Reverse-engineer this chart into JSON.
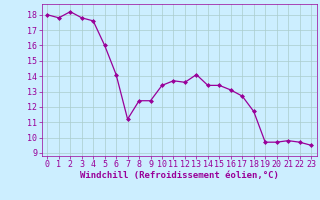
{
  "x": [
    0,
    1,
    2,
    3,
    4,
    5,
    6,
    7,
    8,
    9,
    10,
    11,
    12,
    13,
    14,
    15,
    16,
    17,
    18,
    19,
    20,
    21,
    22,
    23
  ],
  "y": [
    18.0,
    17.8,
    18.2,
    17.8,
    17.6,
    16.0,
    14.1,
    11.2,
    12.4,
    12.4,
    13.4,
    13.7,
    13.6,
    14.1,
    13.4,
    13.4,
    13.1,
    12.7,
    11.7,
    9.7,
    9.7,
    9.8,
    9.7,
    9.5
  ],
  "line_color": "#990099",
  "marker": "D",
  "marker_size": 2.0,
  "line_width": 0.9,
  "bg_color": "#cceeff",
  "grid_color": "#aacccc",
  "xlabel": "Windchill (Refroidissement éolien,°C)",
  "xlabel_color": "#990099",
  "xlabel_fontsize": 6.5,
  "tick_color": "#990099",
  "tick_fontsize": 6,
  "ylim": [
    8.8,
    18.7
  ],
  "xlim": [
    -0.5,
    23.5
  ],
  "yticks": [
    9,
    10,
    11,
    12,
    13,
    14,
    15,
    16,
    17,
    18
  ],
  "xticks": [
    0,
    1,
    2,
    3,
    4,
    5,
    6,
    7,
    8,
    9,
    10,
    11,
    12,
    13,
    14,
    15,
    16,
    17,
    18,
    19,
    20,
    21,
    22,
    23
  ]
}
